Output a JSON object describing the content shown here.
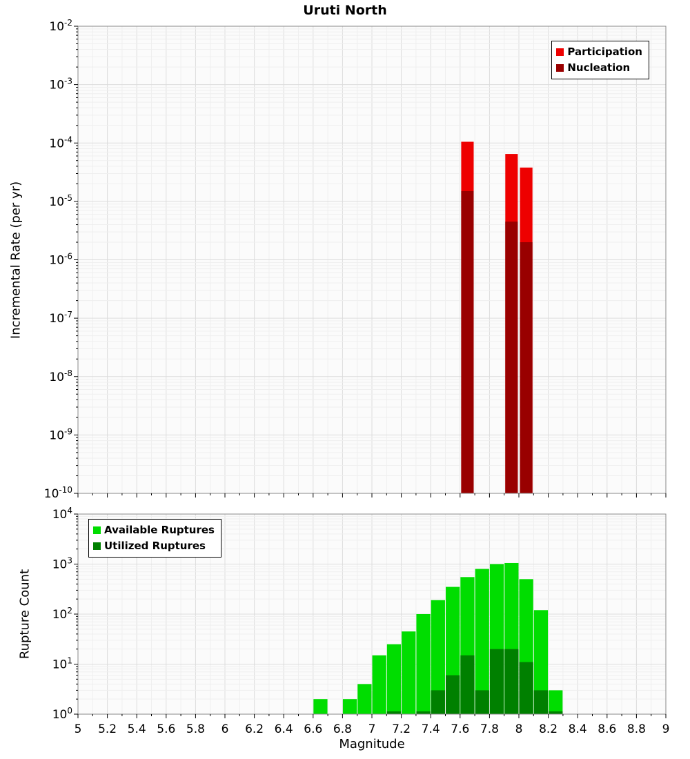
{
  "title": "Uruti North",
  "style": {
    "plot_bg": "#fbfbfb",
    "grid_major": "#dcdcdc",
    "grid_minor": "#efefef",
    "frame": "#8a8a8a"
  },
  "x_axis": {
    "label": "Magnitude",
    "ticks": [
      5,
      5.2,
      5.4,
      5.6,
      5.8,
      6,
      6.2,
      6.4,
      6.6,
      6.8,
      7,
      7.2,
      7.4,
      7.6,
      7.8,
      8,
      8.2,
      8.4,
      8.6,
      8.8,
      9
    ],
    "tick_labels": [
      "5",
      "5.2",
      "5.4",
      "5.6",
      "5.8",
      "6",
      "6.2",
      "6.4",
      "6.6",
      "6.8",
      "7",
      "7.2",
      "7.4",
      "7.6",
      "7.8",
      "8",
      "8.2",
      "8.4",
      "8.6",
      "8.8",
      "9"
    ]
  },
  "chart_data": [
    {
      "type": "bar",
      "panel": "incremental-rate",
      "title": "Uruti North",
      "ylabel": "Incremental Rate (per yr)",
      "yscale": "log",
      "ylim_exp": [
        -10,
        -2
      ],
      "y_tick_exponents": [
        -2,
        -3,
        -4,
        -5,
        -6,
        -7,
        -8,
        -9,
        -10
      ],
      "xlim": [
        5,
        9
      ],
      "bar_width_mag": 0.085,
      "legend_position": "top-right",
      "series": [
        {
          "name": "Participation",
          "color": "#ee0000",
          "points": [
            [
              7.65,
              0.000105
            ],
            [
              7.95,
              6.5e-05
            ],
            [
              8.05,
              3.8e-05
            ]
          ]
        },
        {
          "name": "Nucleation",
          "color": "#990000",
          "points": [
            [
              7.65,
              1.5e-05
            ],
            [
              7.95,
              4.5e-06
            ],
            [
              8.05,
              2e-06
            ]
          ]
        }
      ]
    },
    {
      "type": "bar",
      "panel": "rupture-count",
      "ylabel": "Rupture Count",
      "xlabel": "Magnitude",
      "yscale": "log",
      "ylim_exp": [
        0,
        4
      ],
      "y_tick_exponents": [
        4,
        3,
        2,
        1,
        0
      ],
      "xlim": [
        5,
        9
      ],
      "bar_width_mag": 0.095,
      "legend_position": "top-left",
      "series": [
        {
          "name": "Available Ruptures",
          "color": "#00dd00",
          "points": [
            [
              6.65,
              2
            ],
            [
              6.85,
              2
            ],
            [
              6.95,
              4
            ],
            [
              7.05,
              15
            ],
            [
              7.15,
              25
            ],
            [
              7.25,
              45
            ],
            [
              7.35,
              100
            ],
            [
              7.45,
              190
            ],
            [
              7.55,
              350
            ],
            [
              7.65,
              550
            ],
            [
              7.75,
              800
            ],
            [
              7.85,
              1000
            ],
            [
              7.95,
              1050
            ],
            [
              8.05,
              500
            ],
            [
              8.15,
              120
            ],
            [
              8.25,
              3
            ]
          ]
        },
        {
          "name": "Utilized Ruptures",
          "color": "#008000",
          "points": [
            [
              7.15,
              1
            ],
            [
              7.35,
              1
            ],
            [
              7.45,
              3
            ],
            [
              7.55,
              6
            ],
            [
              7.65,
              15
            ],
            [
              7.75,
              3
            ],
            [
              7.85,
              20
            ],
            [
              7.95,
              20
            ],
            [
              8.05,
              11
            ],
            [
              8.15,
              3
            ],
            [
              8.25,
              1
            ]
          ]
        }
      ]
    }
  ]
}
